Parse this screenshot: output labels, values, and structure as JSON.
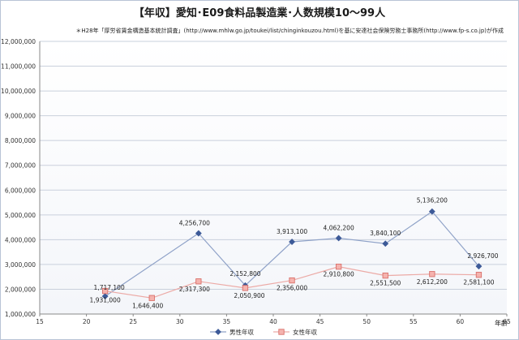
{
  "chart_data": {
    "type": "line",
    "title": "【年収】愛知･E09食料品製造業･人数規模10～99人",
    "source_note": "＊H28年「厚労省賃金構造基本統計調査」(http://www.mhlw.go.jp/toukei/list/chinginkouzou.html)を基に安達社会保険労務士事務所(http://www.fp-s.co.jp)が作成",
    "xlabel": "年齢",
    "ylabel": "",
    "xlim": [
      15,
      65
    ],
    "ylim": [
      1000000,
      12000000
    ],
    "x_ticks": [
      15,
      20,
      25,
      30,
      35,
      40,
      45,
      50,
      55,
      60,
      65
    ],
    "y_ticks": [
      1000000,
      2000000,
      3000000,
      4000000,
      5000000,
      6000000,
      7000000,
      8000000,
      9000000,
      10000000,
      11000000,
      12000000
    ],
    "y_tick_labels": [
      "1,000,000",
      "2,000,000",
      "3,000,000",
      "4,000,000",
      "5,000,000",
      "6,000,000",
      "7,000,000",
      "8,000,000",
      "9,000,000",
      "10,000,000",
      "11,000,000",
      "12,000,000"
    ],
    "grid": true,
    "legend_position": "bottom-center",
    "series": [
      {
        "name": "男性年収",
        "color": "#3d5a98",
        "marker": "diamond",
        "x": [
          22,
          32,
          37,
          42,
          47,
          52,
          57,
          62
        ],
        "values": [
          1717100,
          4256700,
          2152800,
          3913100,
          4062200,
          3840100,
          5136200,
          2926700
        ],
        "labels": [
          "1,717,100",
          "4,256,700",
          "2,152,800",
          "3,913,100",
          "4,062,200",
          "3,840,100",
          "5,136,200",
          "2,926,700"
        ]
      },
      {
        "name": "女性年収",
        "color": "#d9706b",
        "marker": "square",
        "x": [
          22,
          27,
          32,
          37,
          42,
          47,
          52,
          57,
          62
        ],
        "values": [
          1931000,
          1646400,
          2317300,
          2050900,
          2356000,
          2910800,
          2551500,
          2612200,
          2581100
        ],
        "labels": [
          "1,931,000",
          "1,646,400",
          "2,317,300",
          "2,050,900",
          "2,356,000",
          "2,910,800",
          "2,551,500",
          "2,612,200",
          "2,581,100"
        ]
      }
    ]
  }
}
